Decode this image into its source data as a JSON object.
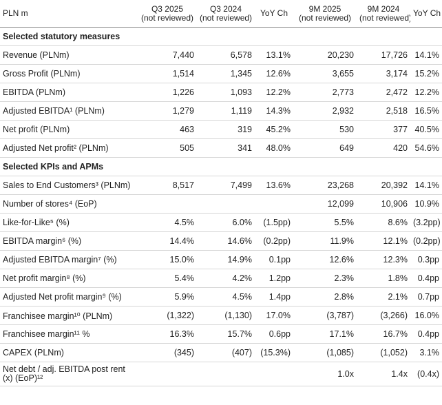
{
  "table": {
    "header": [
      {
        "text": "PLN m"
      },
      {
        "text": "Q3 2025",
        "note": "(not reviewed)"
      },
      {
        "text": "Q3 2024",
        "note": "(not reviewed)"
      },
      {
        "text": "YoY Ch"
      },
      {
        "text": "9M 2025",
        "note": "(not reviewed)"
      },
      {
        "text": "9M 2024",
        "note": "(not reviewed)"
      },
      {
        "text": "YoY Ch"
      }
    ],
    "sections": [
      {
        "title": "Selected statutory measures",
        "rows": [
          [
            "Revenue (PLNm)",
            "7,440",
            "6,578",
            "13.1%",
            "20,230",
            "17,726",
            "14.1%"
          ],
          [
            "Gross Profit (PLNm)",
            "1,514",
            "1,345",
            "12.6%",
            "3,655",
            "3,174",
            "15.2%"
          ],
          [
            "EBITDA (PLNm)",
            "1,226",
            "1,093",
            "12.2%",
            "2,773",
            "2,472",
            "12.2%"
          ],
          [
            "Adjusted EBITDA¹ (PLNm)",
            "1,279",
            "1,119",
            "14.3%",
            "2,932",
            "2,518",
            "16.5%"
          ],
          [
            "Net profit (PLNm)",
            "463",
            "319",
            "45.2%",
            "530",
            "377",
            "40.5%"
          ],
          [
            "Adjusted Net profit² (PLNm)",
            "505",
            "341",
            "48.0%",
            "649",
            "420",
            "54.6%"
          ]
        ]
      },
      {
        "title": "Selected KPIs and APMs",
        "rows": [
          [
            "Sales to End Customers³ (PLNm)",
            "8,517",
            "7,499",
            "13.6%",
            "23,268",
            "20,392",
            "14.1%"
          ],
          [
            "Number of stores⁴ (EoP)",
            null,
            null,
            null,
            "12,099",
            "10,906",
            "10.9%"
          ],
          [
            "Like-for-Like⁵ (%)",
            "4.5%",
            "6.0%",
            "(1.5pp)",
            "5.5%",
            "8.6%",
            "(3.2pp)"
          ],
          [
            "EBITDA margin⁶ (%)",
            "14.4%",
            "14.6%",
            "(0.2pp)",
            "11.9%",
            "12.1%",
            "(0.2pp)"
          ],
          [
            "Adjusted EBITDA margin⁷ (%)",
            "15.0%",
            "14.9%",
            "0.1pp",
            "12.6%",
            "12.3%",
            "0.3pp"
          ],
          [
            "Net profit margin⁸ (%)",
            "5.4%",
            "4.2%",
            "1.2pp",
            "2.3%",
            "1.8%",
            "0.4pp"
          ],
          [
            "Adjusted Net profit margin⁹ (%)",
            "5.9%",
            "4.5%",
            "1.4pp",
            "2.8%",
            "2.1%",
            "0.7pp"
          ],
          [
            "Franchisee margin¹⁰ (PLNm)",
            "(1,322)",
            "(1,130)",
            "17.0%",
            "(3,787)",
            "(3,266)",
            "16.0%"
          ],
          [
            "Franchisee margin¹¹ %",
            "16.3%",
            "15.7%",
            "0.6pp",
            "17.1%",
            "16.7%",
            "0.4pp"
          ],
          [
            "CAPEX (PLNm)",
            "(345)",
            "(407)",
            "(15.3%)",
            "(1,085)",
            "(1,052)",
            "3.1%"
          ],
          [
            "Net debt / adj. EBITDA post rent (x) (EoP)¹²",
            null,
            null,
            null,
            "1.0x",
            "1.4x",
            "(0.4x)"
          ]
        ]
      }
    ]
  }
}
